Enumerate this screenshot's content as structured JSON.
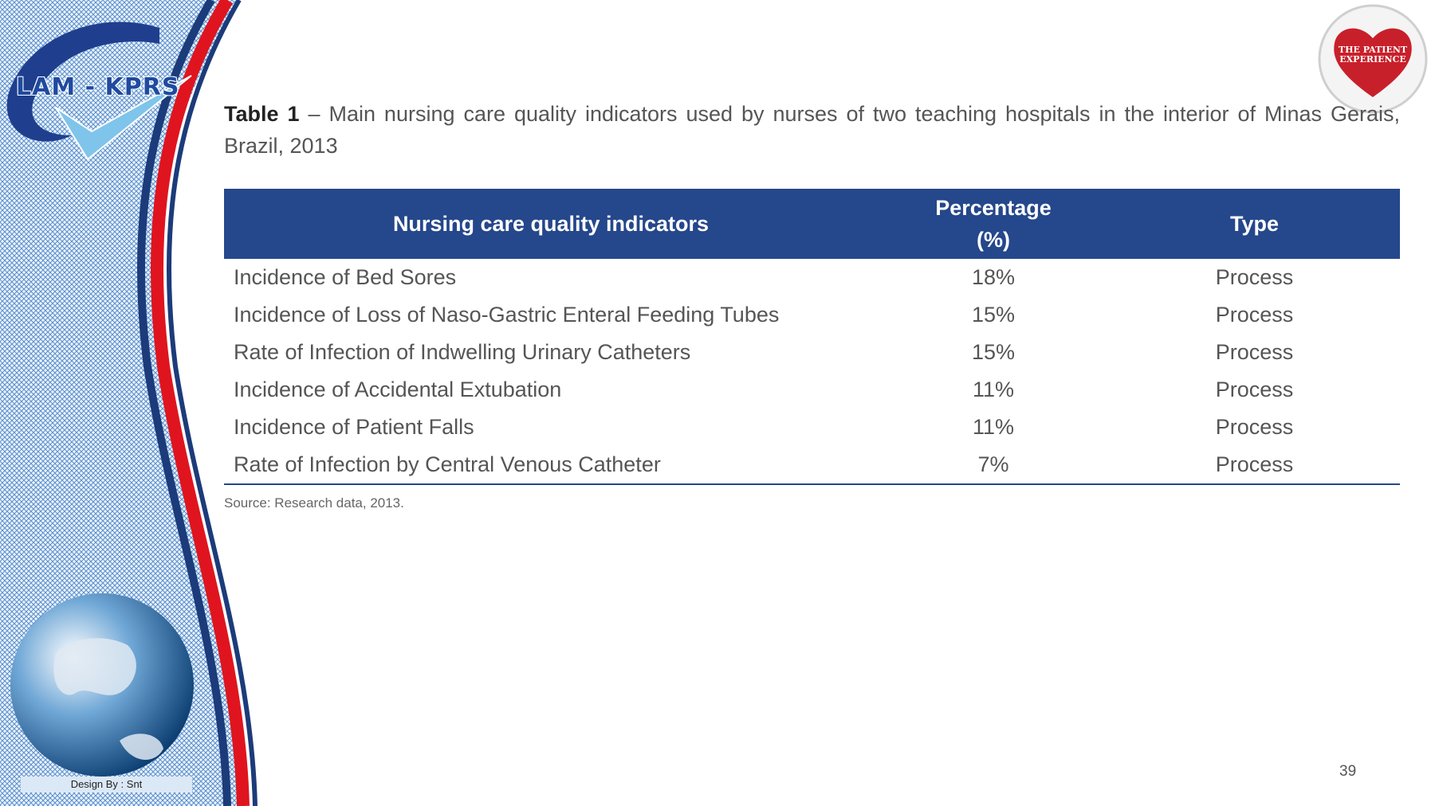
{
  "logo": {
    "text": "LAM - KPRS"
  },
  "designer": {
    "text": "Design By : Snt"
  },
  "badge": {
    "line1": "THE PATIENT",
    "line2": "EXPERIENCE"
  },
  "caption": {
    "lead": "Table 1",
    "text": " – Main nursing care quality indicators used by nurses of two teaching hospitals in the interior of Minas Gerais, Brazil, 2013"
  },
  "table": {
    "headers": {
      "indicator": "Nursing care quality indicators",
      "percentage_line1": "Percentage",
      "percentage_line2": "(%)",
      "type": "Type"
    },
    "rows": [
      {
        "indicator": "Incidence of Bed Sores",
        "percentage": "18%",
        "type": "Process"
      },
      {
        "indicator": "Incidence of Loss of Naso-Gastric Enteral Feeding Tubes",
        "percentage": "15%",
        "type": "Process"
      },
      {
        "indicator": "Rate of Infection of Indwelling Urinary Catheters",
        "percentage": "15%",
        "type": "Process"
      },
      {
        "indicator": "Incidence of Accidental Extubation",
        "percentage": "11%",
        "type": "Process"
      },
      {
        "indicator": "Incidence of Patient Falls",
        "percentage": "11%",
        "type": "Process"
      },
      {
        "indicator": "Rate of Infection by Central Venous Catheter",
        "percentage": "7%",
        "type": "Process"
      }
    ]
  },
  "source": "Source: Research data, 2013.",
  "page_number": "39",
  "colors": {
    "header": "#25478b",
    "accent_red": "#e0141e",
    "sidebar_blue": "#3b79c9"
  }
}
